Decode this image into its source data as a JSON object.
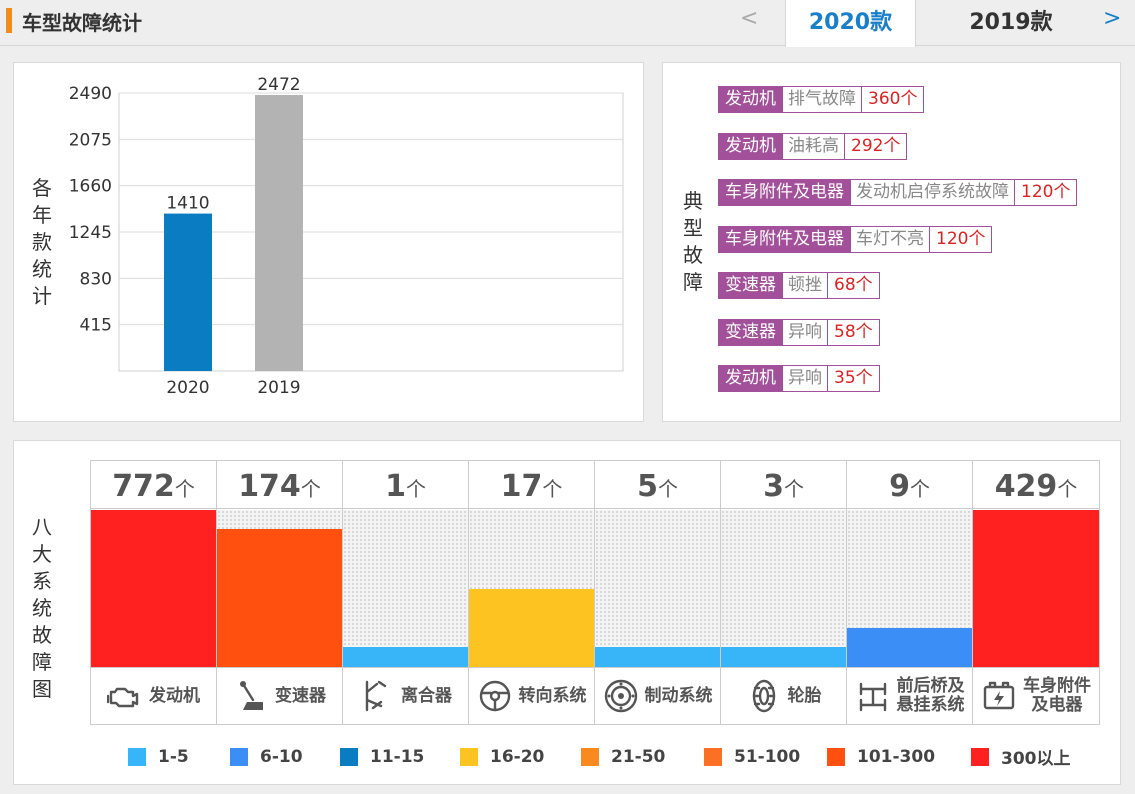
{
  "header": {
    "title": "车型故障统计",
    "prev": "<",
    "next": ">",
    "tabs": [
      {
        "label": "2020款",
        "active": true
      },
      {
        "label": "2019款",
        "active": false
      }
    ]
  },
  "year_panel": {
    "side_label": [
      "各",
      "年",
      "款",
      "统",
      "计"
    ]
  },
  "faults_panel": {
    "side_label": [
      "典",
      "型",
      "故",
      "障"
    ],
    "items": [
      {
        "system": "发动机",
        "fault": "排气故障",
        "count": "360个"
      },
      {
        "system": "发动机",
        "fault": "油耗高",
        "count": "292个"
      },
      {
        "system": "车身附件及电器",
        "fault": "发动机启停系统故障",
        "count": "120个"
      },
      {
        "system": "车身附件及电器",
        "fault": "车灯不亮",
        "count": "120个"
      },
      {
        "system": "变速器",
        "fault": "顿挫",
        "count": "68个"
      },
      {
        "system": "变速器",
        "fault": "异响",
        "count": "58个"
      },
      {
        "system": "发动机",
        "fault": "异响",
        "count": "35个"
      }
    ]
  },
  "systems_panel": {
    "side_label": [
      "八",
      "大",
      "系",
      "统",
      "故",
      "障",
      "图"
    ],
    "unit": "个",
    "systems": [
      {
        "name": "发动机",
        "count": 772,
        "color": "#ff2020",
        "icon": "engine-icon"
      },
      {
        "name": "变速器",
        "count": 174,
        "color": "#ff5010",
        "icon": "gear-shift-icon"
      },
      {
        "name": "离合器",
        "count": 1,
        "color": "#38b4f8",
        "icon": "clutch-pedal-icon"
      },
      {
        "name": "转向系统",
        "count": 17,
        "color": "#fdc421",
        "icon": "steering-wheel-icon"
      },
      {
        "name": "制动系统",
        "count": 5,
        "color": "#38b4f8",
        "icon": "brake-disc-icon"
      },
      {
        "name": "轮胎",
        "count": 3,
        "color": "#38b4f8",
        "icon": "tire-icon"
      },
      {
        "name": "前后桥及悬挂系统",
        "name_lines": [
          "前后桥及",
          "悬挂系统"
        ],
        "count": 9,
        "color": "#3a8ef5",
        "icon": "axle-suspension-icon"
      },
      {
        "name": "车身附件及电器",
        "name_lines": [
          "车身附件",
          "及电器"
        ],
        "count": 429,
        "color": "#ff2020",
        "icon": "battery-icon"
      }
    ],
    "fill_levels": [
      1.0,
      0.88,
      0.13,
      0.5,
      0.13,
      0.13,
      0.25,
      1.0
    ],
    "legend": [
      {
        "label": "1-5",
        "color": "#38b4f8"
      },
      {
        "label": "6-10",
        "color": "#3a8ef5"
      },
      {
        "label": "11-15",
        "color": "#0a7cc1"
      },
      {
        "label": "16-20",
        "color": "#fdc421"
      },
      {
        "label": "21-50",
        "color": "#f98a20"
      },
      {
        "label": "51-100",
        "color": "#fb7024"
      },
      {
        "label": "101-300",
        "color": "#ff5010"
      },
      {
        "label": "300以上",
        "color": "#ff2020"
      }
    ]
  },
  "chart_data": {
    "type": "bar",
    "title": "",
    "xlabel": "",
    "ylabel": "各年款统计",
    "categories": [
      "2020",
      "2019"
    ],
    "values": [
      1410,
      2472
    ],
    "colors": [
      "#0a7cc1",
      "#b3b3b3"
    ],
    "yticks": [
      415,
      830,
      1245,
      1660,
      2075,
      2490
    ],
    "ylim": [
      0,
      2490
    ],
    "grid": true
  }
}
